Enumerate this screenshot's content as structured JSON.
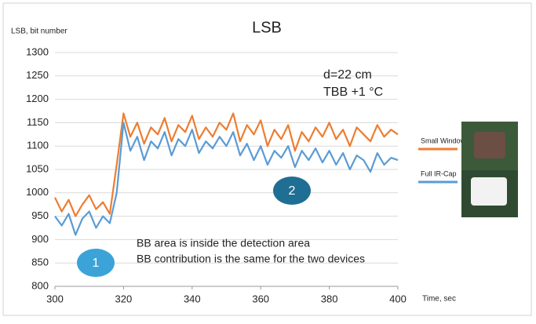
{
  "chart_data": {
    "type": "line",
    "title": "LSB",
    "y_label": "LSB, bit number",
    "x_label": "Time, sec",
    "x": [
      300,
      302,
      304,
      306,
      308,
      310,
      312,
      314,
      316,
      318,
      320,
      322,
      324,
      326,
      328,
      330,
      332,
      334,
      336,
      338,
      340,
      342,
      344,
      346,
      348,
      350,
      352,
      354,
      356,
      358,
      360,
      362,
      364,
      366,
      368,
      370,
      372,
      374,
      376,
      378,
      380,
      382,
      384,
      386,
      388,
      390,
      392,
      394,
      396,
      398,
      400
    ],
    "series": [
      {
        "name": "Small Window",
        "color": "#ed7d31",
        "values": [
          990,
          960,
          985,
          950,
          975,
          995,
          965,
          980,
          955,
          1060,
          1170,
          1120,
          1150,
          1105,
          1140,
          1125,
          1160,
          1110,
          1145,
          1130,
          1165,
          1115,
          1140,
          1120,
          1150,
          1135,
          1170,
          1110,
          1145,
          1125,
          1155,
          1100,
          1135,
          1115,
          1145,
          1090,
          1130,
          1110,
          1140,
          1120,
          1150,
          1115,
          1135,
          1100,
          1140,
          1125,
          1110,
          1145,
          1120,
          1135,
          1125
        ]
      },
      {
        "name": "Full IR-Cap",
        "color": "#5b9bd5",
        "values": [
          950,
          930,
          955,
          910,
          945,
          960,
          925,
          950,
          935,
          1000,
          1150,
          1090,
          1120,
          1070,
          1110,
          1095,
          1130,
          1080,
          1115,
          1100,
          1135,
          1085,
          1110,
          1095,
          1120,
          1100,
          1130,
          1080,
          1105,
          1070,
          1100,
          1060,
          1090,
          1075,
          1100,
          1055,
          1090,
          1070,
          1095,
          1065,
          1090,
          1060,
          1085,
          1050,
          1080,
          1070,
          1045,
          1085,
          1060,
          1075,
          1070
        ]
      }
    ],
    "xlim": [
      300,
      400
    ],
    "xticks": [
      300,
      320,
      340,
      360,
      380,
      400
    ],
    "ylim": [
      800,
      1300
    ],
    "yticks": [
      800,
      850,
      900,
      950,
      1000,
      1050,
      1100,
      1150,
      1200,
      1250,
      1300
    ],
    "grid": true,
    "annotations": [
      "d=22 cm",
      "TBB +1 °C",
      "BB area is inside the detection area",
      "BB contribution is the same for the two devices",
      "1",
      "2"
    ]
  }
}
